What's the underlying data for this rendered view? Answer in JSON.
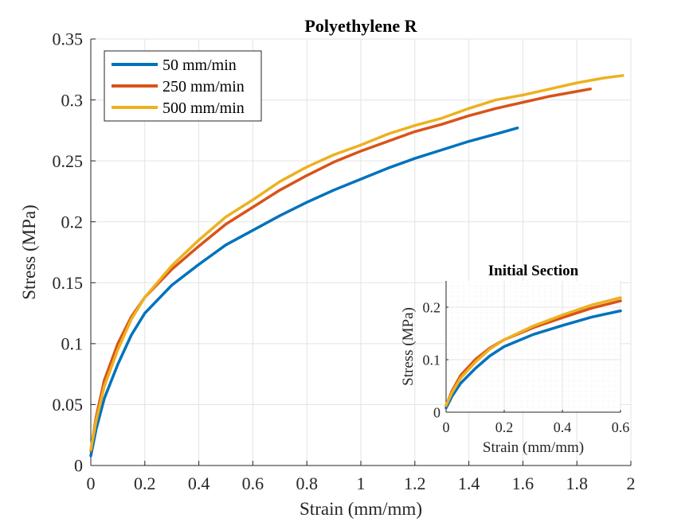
{
  "chart_data": [
    {
      "type": "line",
      "title": "Polyethylene R",
      "xlabel": "Strain (mm/mm)",
      "ylabel": "Stress (MPa)",
      "xlim": [
        0,
        2
      ],
      "ylim": [
        0,
        0.35
      ],
      "xticks": [
        0,
        0.2,
        0.4,
        0.6,
        0.8,
        1,
        1.2,
        1.4,
        1.6,
        1.8,
        2
      ],
      "xtick_labels": [
        "0",
        "0.2",
        "0.4",
        "0.6",
        "0.8",
        "1",
        "1.2",
        "1.4",
        "1.6",
        "1.8",
        "2"
      ],
      "yticks": [
        0,
        0.05,
        0.1,
        0.15,
        0.2,
        0.25,
        0.3,
        0.35
      ],
      "ytick_labels": [
        "0",
        "0.05",
        "0.1",
        "0.15",
        "0.2",
        "0.25",
        "0.3",
        "0.35"
      ],
      "grid": true,
      "legend_position": "top-left",
      "series": [
        {
          "name": "50 mm/min",
          "color": "#0072BD",
          "x": [
            0,
            0.02,
            0.05,
            0.1,
            0.15,
            0.2,
            0.3,
            0.4,
            0.5,
            0.6,
            0.7,
            0.8,
            0.9,
            1.0,
            1.1,
            1.2,
            1.3,
            1.4,
            1.5,
            1.58
          ],
          "y": [
            0.008,
            0.03,
            0.055,
            0.083,
            0.107,
            0.125,
            0.148,
            0.165,
            0.181,
            0.193,
            0.205,
            0.216,
            0.226,
            0.235,
            0.244,
            0.252,
            0.259,
            0.266,
            0.272,
            0.277
          ]
        },
        {
          "name": "250 mm/min",
          "color": "#D95319",
          "x": [
            0,
            0.02,
            0.05,
            0.1,
            0.15,
            0.2,
            0.3,
            0.4,
            0.5,
            0.6,
            0.7,
            0.8,
            0.9,
            1.0,
            1.1,
            1.2,
            1.3,
            1.4,
            1.5,
            1.6,
            1.7,
            1.8,
            1.85
          ],
          "y": [
            0.012,
            0.04,
            0.07,
            0.1,
            0.122,
            0.138,
            0.161,
            0.18,
            0.198,
            0.212,
            0.226,
            0.238,
            0.249,
            0.258,
            0.266,
            0.274,
            0.28,
            0.287,
            0.293,
            0.298,
            0.303,
            0.307,
            0.309
          ]
        },
        {
          "name": "500 mm/min",
          "color": "#EDB120",
          "x": [
            0,
            0.02,
            0.05,
            0.1,
            0.15,
            0.2,
            0.3,
            0.4,
            0.5,
            0.6,
            0.7,
            0.8,
            0.9,
            1.0,
            1.1,
            1.2,
            1.3,
            1.4,
            1.5,
            1.6,
            1.7,
            1.8,
            1.9,
            1.97
          ],
          "y": [
            0.013,
            0.037,
            0.065,
            0.095,
            0.12,
            0.138,
            0.164,
            0.185,
            0.204,
            0.218,
            0.233,
            0.245,
            0.255,
            0.263,
            0.272,
            0.279,
            0.285,
            0.293,
            0.3,
            0.304,
            0.309,
            0.314,
            0.318,
            0.32
          ]
        }
      ]
    },
    {
      "type": "line",
      "title": "Initial Section",
      "xlabel": "Strain (mm/mm)",
      "ylabel": "Stress (MPa)",
      "xlim": [
        0,
        0.6
      ],
      "ylim": [
        0,
        0.25
      ],
      "xticks": [
        0,
        0.2,
        0.4,
        0.6
      ],
      "xtick_labels": [
        "0",
        "0.2",
        "0.4",
        "0.6"
      ],
      "yticks": [
        0,
        0.1,
        0.2
      ],
      "ytick_labels": [
        "0",
        "0.1",
        "0.2"
      ],
      "grid": true,
      "series": [
        {
          "color": "#0072BD",
          "x": [
            0,
            0.02,
            0.05,
            0.1,
            0.15,
            0.2,
            0.3,
            0.4,
            0.5,
            0.6
          ],
          "y": [
            0.008,
            0.03,
            0.055,
            0.083,
            0.107,
            0.125,
            0.148,
            0.165,
            0.181,
            0.193
          ]
        },
        {
          "color": "#D95319",
          "x": [
            0,
            0.02,
            0.05,
            0.1,
            0.15,
            0.2,
            0.3,
            0.4,
            0.5,
            0.6
          ],
          "y": [
            0.012,
            0.04,
            0.07,
            0.1,
            0.122,
            0.138,
            0.161,
            0.18,
            0.198,
            0.212
          ]
        },
        {
          "color": "#EDB120",
          "x": [
            0,
            0.02,
            0.05,
            0.1,
            0.15,
            0.2,
            0.3,
            0.4,
            0.5,
            0.6
          ],
          "y": [
            0.013,
            0.037,
            0.065,
            0.095,
            0.12,
            0.138,
            0.164,
            0.185,
            0.204,
            0.218
          ]
        }
      ]
    }
  ]
}
